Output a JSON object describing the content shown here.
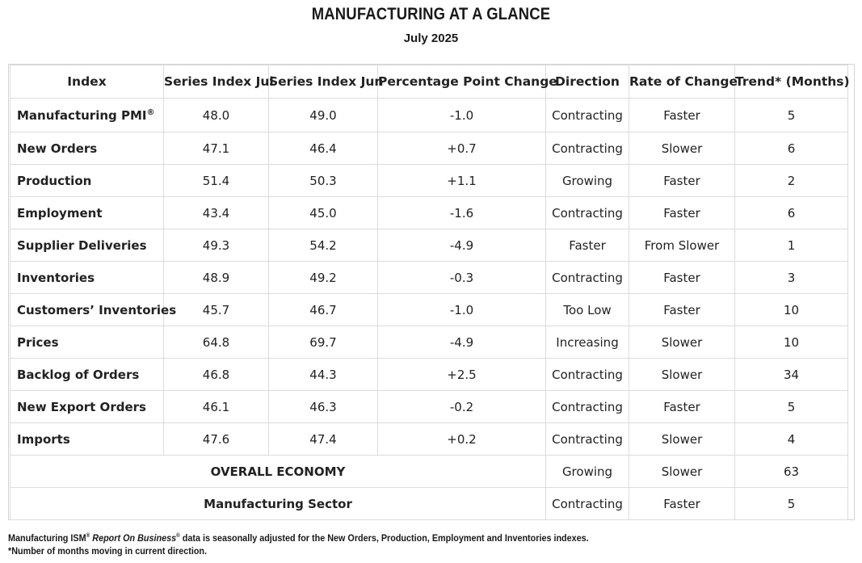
{
  "title": "MANUFACTURING AT A GLANCE",
  "subtitle": "July 2025",
  "table": {
    "headers": [
      "Index",
      "Series Index Jul",
      "Series Index Jun",
      "Percentage Point Change",
      "Direction",
      "Rate of Change",
      "Trend* (Months)"
    ],
    "rows": [
      {
        "index": "Manufacturing PMI",
        "sup": "®",
        "jul": "48.0",
        "jun": "49.0",
        "change": "-1.0",
        "direction": "Contracting",
        "rate": "Faster",
        "trend": "5"
      },
      {
        "index": "New Orders",
        "jul": "47.1",
        "jun": "46.4",
        "change": "+0.7",
        "direction": "Contracting",
        "rate": "Slower",
        "trend": "6"
      },
      {
        "index": "Production",
        "jul": "51.4",
        "jun": "50.3",
        "change": "+1.1",
        "direction": "Growing",
        "rate": "Faster",
        "trend": "2"
      },
      {
        "index": "Employment",
        "jul": "43.4",
        "jun": "45.0",
        "change": "-1.6",
        "direction": "Contracting",
        "rate": "Faster",
        "trend": "6"
      },
      {
        "index": "Supplier Deliveries",
        "jul": "49.3",
        "jun": "54.2",
        "change": "-4.9",
        "direction": "Faster",
        "rate": "From Slower",
        "trend": "1"
      },
      {
        "index": "Inventories",
        "jul": "48.9",
        "jun": "49.2",
        "change": "-0.3",
        "direction": "Contracting",
        "rate": "Faster",
        "trend": "3"
      },
      {
        "index": "Customers’ Inventories",
        "jul": "45.7",
        "jun": "46.7",
        "change": "-1.0",
        "direction": "Too Low",
        "rate": "Faster",
        "trend": "10"
      },
      {
        "index": "Prices",
        "jul": "64.8",
        "jun": "69.7",
        "change": "-4.9",
        "direction": "Increasing",
        "rate": "Slower",
        "trend": "10"
      },
      {
        "index": "Backlog of Orders",
        "jul": "46.8",
        "jun": "44.3",
        "change": "+2.5",
        "direction": "Contracting",
        "rate": "Slower",
        "trend": "34"
      },
      {
        "index": "New Export Orders",
        "jul": "46.1",
        "jun": "46.3",
        "change": "-0.2",
        "direction": "Contracting",
        "rate": "Faster",
        "trend": "5"
      },
      {
        "index": "Imports",
        "jul": "47.6",
        "jun": "47.4",
        "change": "+0.2",
        "direction": "Contracting",
        "rate": "Slower",
        "trend": "4"
      }
    ],
    "summary_rows": [
      {
        "label": "OVERALL ECONOMY",
        "direction": "Growing",
        "rate": "Slower",
        "trend": "63"
      },
      {
        "label": "Manufacturing Sector",
        "direction": "Contracting",
        "rate": "Faster",
        "trend": "5"
      }
    ]
  },
  "footnotes": {
    "line1_prefix": "Manufacturing ISM",
    "line1_sup1": "®",
    "line1_report": "Report On Business",
    "line1_sup2": "®",
    "line1_suffix": " data is seasonally adjusted for the New Orders, Production, Employment and Inventories indexes.",
    "line2": "*Number of months moving in current direction."
  }
}
